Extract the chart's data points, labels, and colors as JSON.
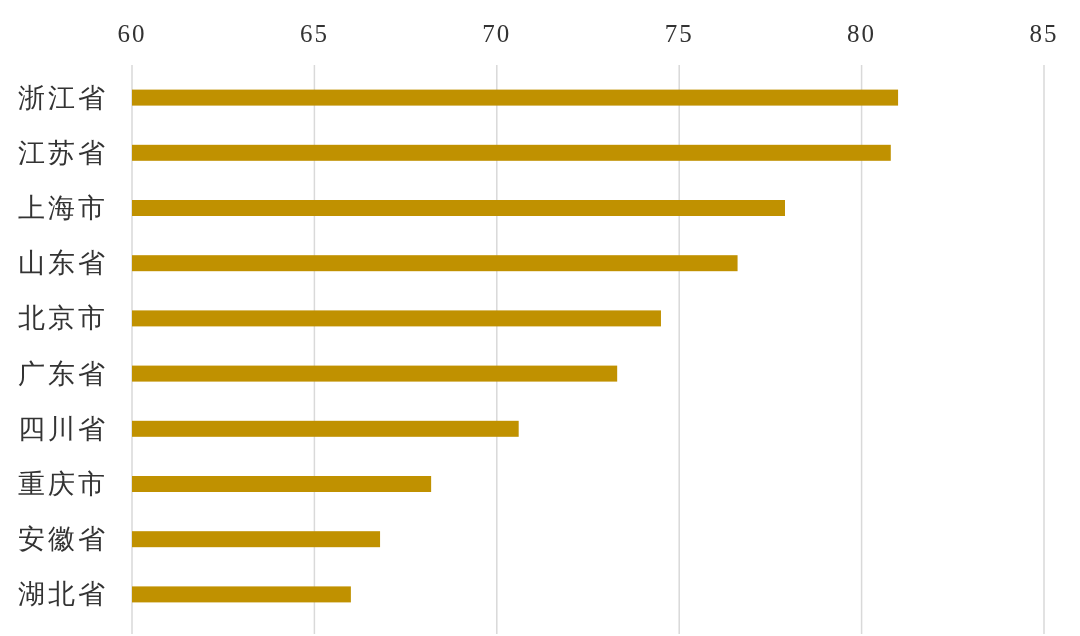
{
  "chart_data": {
    "type": "bar",
    "orientation": "horizontal",
    "categories": [
      "浙江省",
      "江苏省",
      "上海市",
      "山东省",
      "北京市",
      "广东省",
      "四川省",
      "重庆市",
      "安徽省",
      "湖北省"
    ],
    "values": [
      81.0,
      80.8,
      77.9,
      76.6,
      74.5,
      73.3,
      70.6,
      68.2,
      66.8,
      66.0
    ],
    "color": "#c09100",
    "xlim": [
      60,
      85
    ],
    "xticks": [
      60,
      65,
      70,
      75,
      80,
      85
    ],
    "grid": "x"
  }
}
